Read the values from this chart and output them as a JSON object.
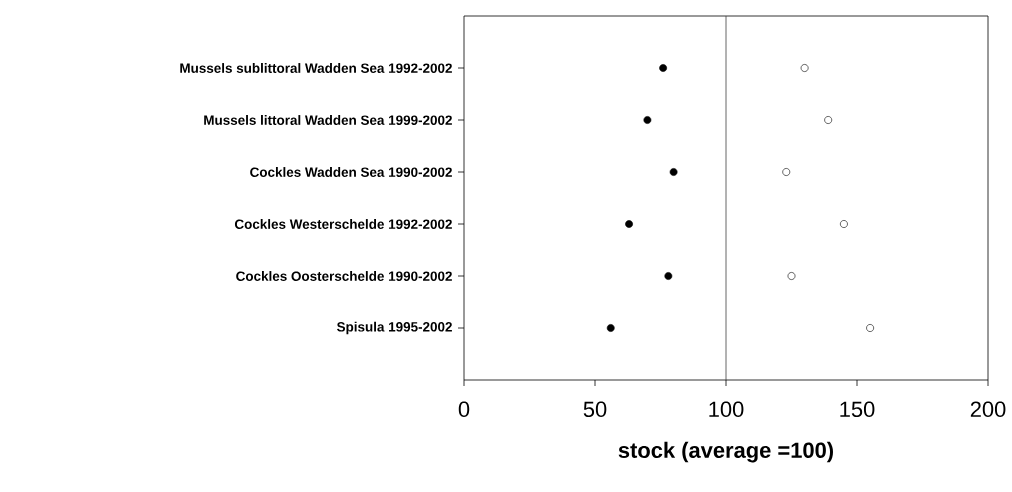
{
  "chart_data": {
    "type": "scatter",
    "orientation": "horizontal",
    "xlabel": "stock (average =100)",
    "categories": [
      "Mussels sublittoral Wadden Sea 1992-2002",
      "Mussels littoral Wadden Sea 1999-2002",
      "Cockles Wadden Sea 1990-2002",
      "Cockles Westerschelde 1992-2002",
      "Cockles Oosterschelde 1990-2002",
      "Spisula 1995-2002"
    ],
    "series": [
      {
        "color": "#000000",
        "values": [
          76,
          70,
          80,
          63,
          78,
          56
        ]
      },
      {
        "color": "#ffffff",
        "values": [
          130,
          139,
          123,
          145,
          125,
          155
        ]
      }
    ],
    "xlim": [
      0,
      200
    ],
    "xticks": [
      0,
      50,
      100,
      150,
      200
    ],
    "ref_lines": [
      {
        "axis": "x",
        "value": 100,
        "color": "#404040"
      }
    ],
    "marker": "circle",
    "grid": false
  }
}
